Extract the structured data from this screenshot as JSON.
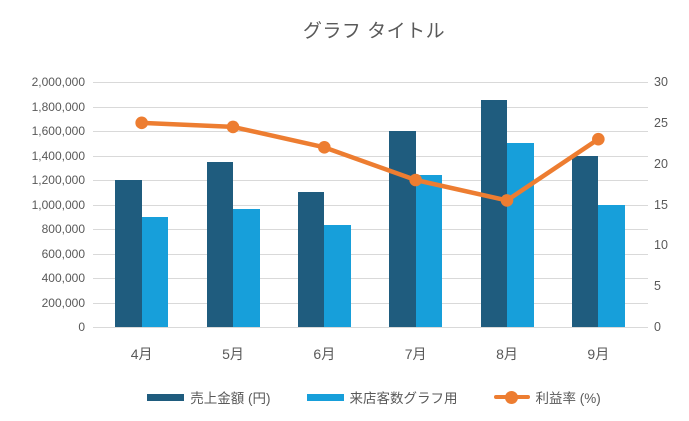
{
  "title": "グラフ タイトル",
  "chart_data": {
    "type": "combo",
    "categories": [
      "4月",
      "5月",
      "6月",
      "7月",
      "8月",
      "9月"
    ],
    "series": [
      {
        "name": "売上金額 (円)",
        "type": "bar",
        "axis": "left",
        "color": "#1F5C7E",
        "values": [
          1200000,
          1350000,
          1100000,
          1600000,
          1850000,
          1400000
        ]
      },
      {
        "name": "来店客数グラフ用",
        "type": "bar",
        "axis": "left",
        "color": "#179FDA",
        "values": [
          900000,
          960000,
          830000,
          1240000,
          1500000,
          1000000
        ]
      },
      {
        "name": "利益率 (%)",
        "type": "line",
        "axis": "right",
        "color": "#ED7D31",
        "values": [
          25,
          24.5,
          22,
          18,
          15.5,
          23
        ]
      }
    ],
    "left_axis": {
      "min": 0,
      "max": 2000000,
      "step": 200000,
      "ticks": [
        "0",
        "200,000",
        "400,000",
        "600,000",
        "800,000",
        "1,000,000",
        "1,200,000",
        "1,400,000",
        "1,600,000",
        "1,800,000",
        "2,000,000"
      ]
    },
    "right_axis": {
      "min": 0,
      "max": 30,
      "step": 5,
      "ticks": [
        "0",
        "5",
        "10",
        "15",
        "20",
        "25",
        "30"
      ]
    },
    "legend_position": "bottom",
    "grid": true
  },
  "colors": {
    "grid": "#D9D9D9",
    "axis_text": "#595959",
    "title_text": "#595959",
    "background": "#FFFFFF"
  }
}
